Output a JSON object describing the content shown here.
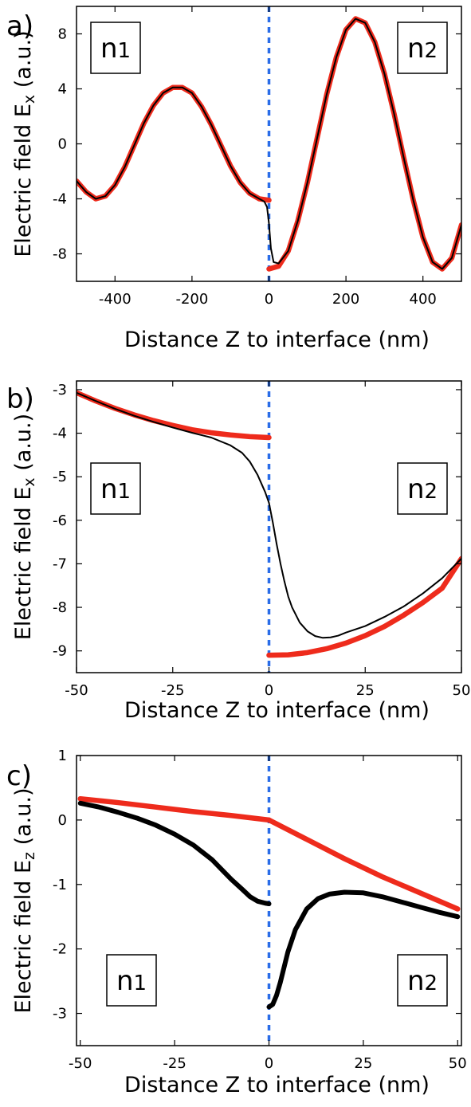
{
  "colors": {
    "red_series": "#ee2b1c",
    "black_series": "#000000",
    "interface_line": "#2a6de8"
  },
  "chart_data": [
    {
      "type": "line",
      "panel_label": "a)",
      "ylabel": "Electric field E",
      "ylabel_sub": "x",
      "ylabel_tail": " (a.u.)",
      "xlabel": "Distance Z to interface (nm)",
      "xlim": [
        -500,
        500
      ],
      "ylim": [
        -10,
        10
      ],
      "xticks": [
        -400,
        -200,
        0,
        200,
        400
      ],
      "xtick_labels": [
        "-400",
        "-200",
        "0",
        "200",
        "400"
      ],
      "yticks": [
        8,
        4,
        0,
        -4,
        -8
      ],
      "ytick_labels": [
        "8",
        "4",
        "0",
        "-4",
        "-8"
      ],
      "regions": [
        {
          "label": "n",
          "sub": "1",
          "side": "left"
        },
        {
          "label": "n",
          "sub": "2",
          "side": "right"
        }
      ],
      "interface_x": 0,
      "series": [
        {
          "style": "red-thick",
          "x": [
            -500,
            -475,
            -450,
            -425,
            -400,
            -375,
            -350,
            -325,
            -300,
            -275,
            -250,
            -225,
            -200,
            -175,
            -150,
            -125,
            -100,
            -75,
            -50,
            -25,
            0
          ],
          "y": [
            -2.7,
            -3.5,
            -4.0,
            -3.8,
            -3.0,
            -1.7,
            -0.1,
            1.5,
            2.8,
            3.7,
            4.1,
            4.1,
            3.7,
            2.7,
            1.4,
            -0.1,
            -1.6,
            -2.8,
            -3.6,
            -4.0,
            -4.1
          ]
        },
        {
          "style": "red-thick",
          "x": [
            0,
            25,
            50,
            75,
            100,
            125,
            150,
            175,
            200,
            225,
            250,
            275,
            300,
            325,
            350,
            375,
            400,
            425,
            450,
            475,
            500
          ],
          "y": [
            -9.1,
            -8.9,
            -7.8,
            -5.6,
            -2.8,
            0.4,
            3.6,
            6.3,
            8.3,
            9.1,
            8.8,
            7.4,
            5.1,
            2.2,
            -1.0,
            -4.1,
            -6.8,
            -8.6,
            -9.1,
            -8.3,
            -5.9
          ]
        },
        {
          "style": "black-thin",
          "x": [
            -500,
            -475,
            -450,
            -425,
            -400,
            -375,
            -350,
            -325,
            -300,
            -275,
            -250,
            -225,
            -200,
            -175,
            -150,
            -125,
            -100,
            -75,
            -50,
            -25,
            -12,
            -5,
            0,
            5,
            12,
            25,
            50,
            75,
            100,
            125,
            150,
            175,
            200,
            225,
            250,
            275,
            300,
            325,
            350,
            375,
            400,
            425,
            450,
            475,
            500
          ],
          "y": [
            -2.7,
            -3.5,
            -4.0,
            -3.8,
            -3.0,
            -1.7,
            -0.1,
            1.5,
            2.8,
            3.7,
            4.1,
            4.1,
            3.7,
            2.7,
            1.4,
            -0.1,
            -1.6,
            -2.8,
            -3.6,
            -4.0,
            -4.2,
            -4.6,
            -5.8,
            -7.6,
            -8.6,
            -8.7,
            -7.8,
            -5.6,
            -2.8,
            0.4,
            3.6,
            6.3,
            8.3,
            9.1,
            8.8,
            7.4,
            5.1,
            2.2,
            -1.0,
            -4.1,
            -6.8,
            -8.6,
            -9.1,
            -8.3,
            -5.9
          ]
        }
      ]
    },
    {
      "type": "line",
      "panel_label": "b)",
      "ylabel": "Electric field E",
      "ylabel_sub": "x",
      "ylabel_tail": " (a.u.)",
      "xlabel": "Distance Z to interface (nm)",
      "xlim": [
        -50,
        50
      ],
      "ylim": [
        -9.5,
        -2.8
      ],
      "xticks": [
        -50,
        -25,
        0,
        25,
        50
      ],
      "xtick_labels": [
        "-50",
        "-25",
        "0",
        "25",
        "50"
      ],
      "yticks": [
        -3,
        -4,
        -5,
        -6,
        -7,
        -8,
        -9
      ],
      "ytick_labels": [
        "-3",
        "-4",
        "-5",
        "-6",
        "-7",
        "-8",
        "-9"
      ],
      "regions": [
        {
          "label": "n",
          "sub": "1",
          "side": "left"
        },
        {
          "label": "n",
          "sub": "2",
          "side": "right"
        }
      ],
      "interface_x": 0,
      "series": [
        {
          "style": "red-thick",
          "x": [
            -50,
            -45,
            -40,
            -35,
            -30,
            -25,
            -20,
            -15,
            -10,
            -5,
            0
          ],
          "y": [
            -3.07,
            -3.26,
            -3.43,
            -3.58,
            -3.71,
            -3.82,
            -3.92,
            -3.99,
            -4.04,
            -4.08,
            -4.1
          ]
        },
        {
          "style": "red-thick",
          "x": [
            0,
            5,
            10,
            15,
            20,
            25,
            30,
            35,
            40,
            45,
            50
          ],
          "y": [
            -9.1,
            -9.09,
            -9.04,
            -8.95,
            -8.82,
            -8.65,
            -8.44,
            -8.18,
            -7.89,
            -7.56,
            -6.88
          ]
        },
        {
          "style": "black-thin",
          "x": [
            -50,
            -45,
            -40,
            -35,
            -30,
            -25,
            -20,
            -15,
            -10,
            -7,
            -5,
            -3,
            -1,
            0,
            1,
            2,
            3,
            4,
            5,
            6,
            8,
            10,
            12,
            14,
            16,
            18,
            20,
            25,
            30,
            35,
            40,
            45,
            50
          ],
          "y": [
            -3.07,
            -3.26,
            -3.44,
            -3.6,
            -3.74,
            -3.87,
            -3.99,
            -4.1,
            -4.28,
            -4.45,
            -4.65,
            -4.95,
            -5.35,
            -5.6,
            -6.05,
            -6.55,
            -7.0,
            -7.4,
            -7.75,
            -8.0,
            -8.35,
            -8.55,
            -8.66,
            -8.7,
            -8.69,
            -8.65,
            -8.58,
            -8.43,
            -8.22,
            -7.98,
            -7.68,
            -7.33,
            -6.88
          ]
        }
      ]
    },
    {
      "type": "line",
      "panel_label": "c)",
      "ylabel": "Electric field E",
      "ylabel_sub": "z",
      "ylabel_tail": " (a.u.)",
      "xlabel": "Distance Z to interface (nm)",
      "xlim": [
        -51,
        51
      ],
      "ylim": [
        -3.5,
        1
      ],
      "xticks": [
        -50,
        -25,
        0,
        25,
        50
      ],
      "xtick_labels": [
        "-50",
        "-25",
        "0",
        "25",
        "50"
      ],
      "yticks": [
        1,
        0,
        -1,
        -2,
        -3
      ],
      "ytick_labels": [
        "1",
        "0",
        "-1",
        "-2",
        "-3"
      ],
      "regions": [
        {
          "label": "n",
          "sub": "1",
          "side": "left"
        },
        {
          "label": "n",
          "sub": "2",
          "side": "right"
        }
      ],
      "interface_x": 0,
      "series": [
        {
          "style": "red-thick",
          "x": [
            -50,
            -40,
            -30,
            -20,
            -10,
            0
          ],
          "y": [
            0.33,
            0.27,
            0.2,
            0.13,
            0.07,
            0.0
          ]
        },
        {
          "style": "red-thick",
          "x": [
            0,
            10,
            20,
            30,
            40,
            50
          ],
          "y": [
            0.0,
            -0.3,
            -0.6,
            -0.88,
            -1.13,
            -1.38
          ]
        },
        {
          "style": "black-thick",
          "x": [
            -50,
            -45,
            -40,
            -35,
            -30,
            -25,
            -20,
            -15,
            -10,
            -7,
            -5,
            -3,
            -1,
            0
          ],
          "y": [
            0.26,
            0.2,
            0.12,
            0.03,
            -0.08,
            -0.22,
            -0.39,
            -0.62,
            -0.92,
            -1.08,
            -1.19,
            -1.26,
            -1.29,
            -1.3
          ]
        },
        {
          "style": "black-thick",
          "x": [
            0,
            1,
            2,
            3,
            5,
            7,
            10,
            13,
            16,
            20,
            25,
            30,
            35,
            40,
            45,
            50
          ],
          "y": [
            -2.9,
            -2.86,
            -2.72,
            -2.52,
            -2.05,
            -1.7,
            -1.38,
            -1.22,
            -1.15,
            -1.12,
            -1.13,
            -1.19,
            -1.27,
            -1.35,
            -1.43,
            -1.5
          ]
        }
      ]
    }
  ]
}
